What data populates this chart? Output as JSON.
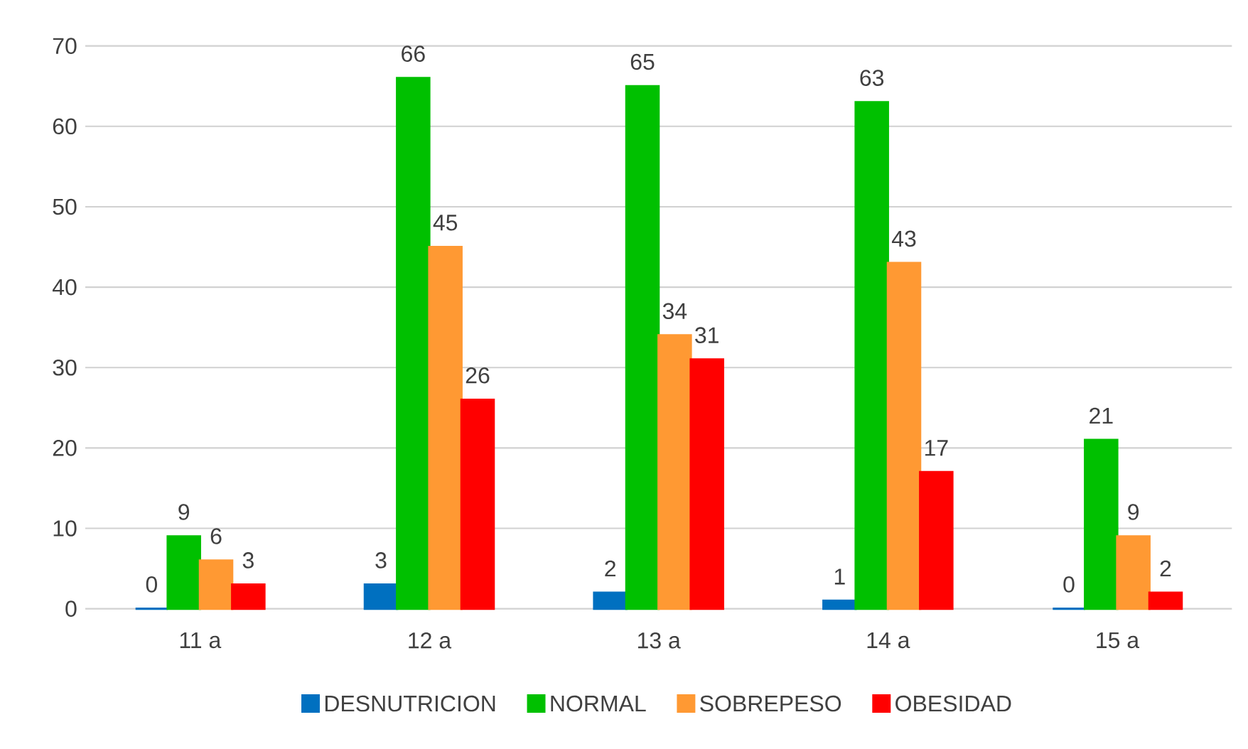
{
  "chart_data": {
    "type": "bar",
    "categories": [
      "11 a",
      "12 a",
      "13 a",
      "14 a",
      "15 a"
    ],
    "series": [
      {
        "name": "DESNUTRICION",
        "color": "#0070c0",
        "values": [
          0,
          3,
          2,
          1,
          0
        ]
      },
      {
        "name": "NORMAL",
        "color": "#00c000",
        "values": [
          9,
          66,
          65,
          63,
          21
        ]
      },
      {
        "name": "SOBREPESO",
        "color": "#ff9933",
        "values": [
          6,
          45,
          34,
          43,
          9
        ]
      },
      {
        "name": "OBESIDAD",
        "color": "#ff0000",
        "values": [
          3,
          26,
          31,
          17,
          2
        ]
      }
    ],
    "ylim": [
      0,
      70
    ],
    "yticks": [
      0,
      10,
      20,
      30,
      40,
      50,
      60,
      70
    ],
    "grid": "y",
    "legend": "bottom",
    "data_labels": true
  }
}
